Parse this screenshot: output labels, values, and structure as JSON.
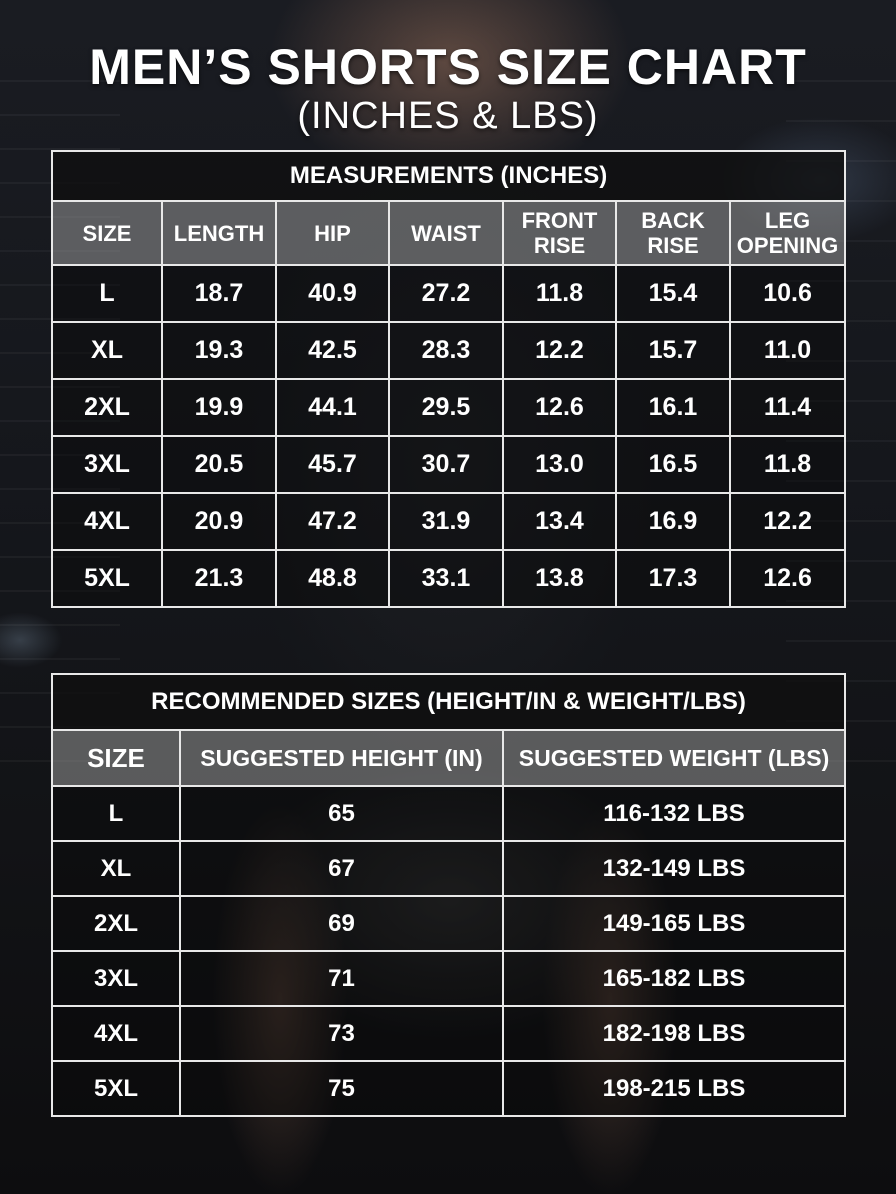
{
  "title": "MEN’S SHORTS SIZE CHART",
  "subtitle": "(INCHES & LBS)",
  "measurements": {
    "caption": "MEASUREMENTS (INCHES)",
    "headers": [
      [
        "SIZE"
      ],
      [
        "LENGTH"
      ],
      [
        "HIP"
      ],
      [
        "WAIST"
      ],
      [
        "FRONT",
        "RISE"
      ],
      [
        "BACK",
        "RISE"
      ],
      [
        "LEG",
        "OPENING"
      ]
    ],
    "rows": [
      [
        "L",
        "18.7",
        "40.9",
        "27.2",
        "11.8",
        "15.4",
        "10.6"
      ],
      [
        "XL",
        "19.3",
        "42.5",
        "28.3",
        "12.2",
        "15.7",
        "11.0"
      ],
      [
        "2XL",
        "19.9",
        "44.1",
        "29.5",
        "12.6",
        "16.1",
        "11.4"
      ],
      [
        "3XL",
        "20.5",
        "45.7",
        "30.7",
        "13.0",
        "16.5",
        "11.8"
      ],
      [
        "4XL",
        "20.9",
        "47.2",
        "31.9",
        "13.4",
        "16.9",
        "12.2"
      ],
      [
        "5XL",
        "21.3",
        "48.8",
        "33.1",
        "13.8",
        "17.3",
        "12.6"
      ]
    ]
  },
  "recommended": {
    "caption": "RECOMMENDED SIZES (HEIGHT/IN & WEIGHT/LBS)",
    "headers": [
      "SIZE",
      "SUGGESTED HEIGHT (IN)",
      "SUGGESTED WEIGHT (LBS)"
    ],
    "rows": [
      [
        "L",
        "65",
        "116-132 LBS"
      ],
      [
        "XL",
        "67",
        "132-149 LBS"
      ],
      [
        "2XL",
        "69",
        "149-165 LBS"
      ],
      [
        "3XL",
        "71",
        "165-182 LBS"
      ],
      [
        "4XL",
        "73",
        "182-198 LBS"
      ],
      [
        "5XL",
        "75",
        "198-215 LBS"
      ]
    ]
  },
  "colors": {
    "text": "#ffffff",
    "border": "#e8e8e8",
    "header_fill": "#8a8a8a",
    "caption_fill": "#0f0f0f"
  }
}
